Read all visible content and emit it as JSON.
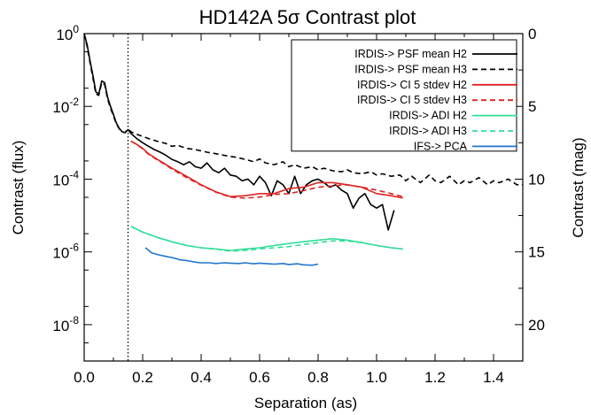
{
  "chart_data": {
    "type": "line",
    "title": "HD142A 5σ Contrast plot",
    "xlabel": "Separation (as)",
    "ylabel": "Contrast (flux)",
    "ylabel_right": "Contrast (mag)",
    "xlim": [
      0.0,
      1.5
    ],
    "ylim": [
      1e-09,
      1.0
    ],
    "yscale": "log",
    "xticks": [
      "0.0",
      "0.2",
      "0.4",
      "0.6",
      "0.8",
      "1.0",
      "1.2",
      "1.4"
    ],
    "xtick_values": [
      0.0,
      0.2,
      0.4,
      0.6,
      0.8,
      1.0,
      1.2,
      1.4
    ],
    "yticks": [
      {
        "base": "10",
        "exp": "0",
        "value": 1
      },
      {
        "base": "10",
        "exp": "-2",
        "value": 0.01
      },
      {
        "base": "10",
        "exp": "-4",
        "value": 0.0001
      },
      {
        "base": "10",
        "exp": "-6",
        "value": 1e-06
      },
      {
        "base": "10",
        "exp": "-8",
        "value": 1e-08
      }
    ],
    "right_ticks": [
      "0",
      "5",
      "10",
      "15",
      "20"
    ],
    "right_tick_values": [
      0,
      5,
      10,
      15,
      20
    ],
    "vline_x": 0.15,
    "legend_position": "top-right",
    "grid": false,
    "series": [
      {
        "name": "IRDIS-> PSF mean H2",
        "color": "#000000",
        "dash": "solid",
        "x": [
          0.0,
          0.01,
          0.02,
          0.03,
          0.04,
          0.05,
          0.06,
          0.07,
          0.08,
          0.09,
          0.1,
          0.11,
          0.12,
          0.13,
          0.14,
          0.15,
          0.16,
          0.18,
          0.2,
          0.22,
          0.24,
          0.26,
          0.28,
          0.3,
          0.32,
          0.34,
          0.36,
          0.38,
          0.4,
          0.42,
          0.44,
          0.46,
          0.48,
          0.5,
          0.52,
          0.54,
          0.56,
          0.58,
          0.6,
          0.62,
          0.64,
          0.66,
          0.68,
          0.7,
          0.72,
          0.74,
          0.76,
          0.78,
          0.8,
          0.82,
          0.84,
          0.86,
          0.88,
          0.9,
          0.92,
          0.94,
          0.96,
          0.98,
          1.0,
          1.02,
          1.04,
          1.06
        ],
        "y": [
          1.0,
          0.5,
          0.18,
          0.07,
          0.025,
          0.022,
          0.05,
          0.045,
          0.018,
          0.01,
          0.006,
          0.0035,
          0.0025,
          0.002,
          0.0019,
          0.0023,
          0.0018,
          0.0013,
          0.001,
          0.0008,
          0.00065,
          0.00055,
          0.00045,
          0.00035,
          0.0003,
          0.00025,
          0.0003,
          0.00022,
          0.0002,
          0.00028,
          0.00018,
          0.00015,
          0.0002,
          0.00013,
          0.00012,
          9e-05,
          0.0001,
          7e-05,
          0.00012,
          8e-05,
          3.5e-05,
          9e-05,
          7e-05,
          4e-05,
          0.00012,
          4e-05,
          7e-05,
          9e-05,
          0.0001,
          8e-05,
          6e-05,
          7e-05,
          5e-05,
          4e-05,
          1.6e-05,
          3e-05,
          4e-05,
          2e-05,
          1.6e-05,
          2e-05,
          4e-06,
          1.4e-05
        ]
      },
      {
        "name": "IRDIS-> PSF mean H3",
        "color": "#000000",
        "dash": "dashed",
        "x": [
          0.0,
          0.01,
          0.02,
          0.03,
          0.04,
          0.05,
          0.06,
          0.07,
          0.08,
          0.09,
          0.1,
          0.11,
          0.12,
          0.13,
          0.14,
          0.15,
          0.16,
          0.18,
          0.2,
          0.22,
          0.25,
          0.28,
          0.3,
          0.32,
          0.35,
          0.38,
          0.4,
          0.42,
          0.45,
          0.48,
          0.5,
          0.52,
          0.55,
          0.58,
          0.6,
          0.62,
          0.65,
          0.68,
          0.7,
          0.72,
          0.75,
          0.78,
          0.8,
          0.82,
          0.85,
          0.88,
          0.9,
          0.92,
          0.95,
          0.98,
          1.0,
          1.02,
          1.05,
          1.08,
          1.1,
          1.12,
          1.15,
          1.18,
          1.2,
          1.22,
          1.25,
          1.28,
          1.3,
          1.32,
          1.35,
          1.38,
          1.4,
          1.42,
          1.45,
          1.48,
          1.5
        ],
        "y": [
          1.0,
          0.45,
          0.16,
          0.06,
          0.022,
          0.02,
          0.045,
          0.04,
          0.016,
          0.009,
          0.0055,
          0.0033,
          0.0024,
          0.002,
          0.0019,
          0.0024,
          0.002,
          0.0017,
          0.0015,
          0.0013,
          0.0011,
          0.00095,
          0.0008,
          0.00085,
          0.0007,
          0.00065,
          0.0006,
          0.00055,
          0.0005,
          0.00045,
          0.00042,
          0.0004,
          0.00035,
          0.0003,
          0.00036,
          0.00028,
          0.00025,
          0.0003,
          0.00022,
          0.00025,
          0.0002,
          0.00022,
          0.00018,
          0.0002,
          0.00017,
          0.00016,
          0.00018,
          0.00015,
          0.00014,
          0.00016,
          0.00013,
          0.00014,
          0.00012,
          0.00013,
          9e-05,
          0.00012,
          8e-05,
          0.00013,
          9e-05,
          8e-05,
          0.00012,
          7e-05,
          9e-05,
          8e-05,
          0.00011,
          7e-05,
          9e-05,
          8e-05,
          0.0001,
          7e-05,
          7e-05
        ]
      },
      {
        "name": "IRDIS-> CI 5 stdev H2",
        "color": "#dd2222",
        "dash": "solid",
        "x": [
          0.16,
          0.18,
          0.2,
          0.22,
          0.25,
          0.28,
          0.3,
          0.35,
          0.4,
          0.45,
          0.5,
          0.55,
          0.6,
          0.65,
          0.7,
          0.75,
          0.8,
          0.85,
          0.9,
          0.95,
          1.0,
          1.05,
          1.09
        ],
        "y": [
          0.0011,
          0.0009,
          0.0007,
          0.0005,
          0.00035,
          0.00025,
          0.0002,
          0.00012,
          7e-05,
          4.5e-05,
          3.3e-05,
          3.5e-05,
          4e-05,
          4e-05,
          5.5e-05,
          6e-05,
          8e-05,
          8e-05,
          7e-05,
          6e-05,
          4e-05,
          3.5e-05,
          3e-05
        ]
      },
      {
        "name": "IRDIS-> CI 5 stdev H3",
        "color": "#dd2222",
        "dash": "dashed",
        "x": [
          0.16,
          0.18,
          0.2,
          0.22,
          0.25,
          0.28,
          0.3,
          0.35,
          0.4,
          0.45,
          0.5,
          0.55,
          0.6,
          0.65,
          0.7,
          0.75,
          0.8,
          0.85,
          0.9,
          0.95,
          1.0,
          1.05,
          1.09
        ],
        "y": [
          0.0011,
          0.0009,
          0.00068,
          0.00048,
          0.00034,
          0.00024,
          0.00019,
          0.00011,
          6.8e-05,
          4.4e-05,
          3.2e-05,
          3e-05,
          3.2e-05,
          3.8e-05,
          4e-05,
          4.8e-05,
          6e-05,
          6.5e-05,
          7e-05,
          6e-05,
          5e-05,
          4e-05,
          3.3e-05
        ]
      },
      {
        "name": "IRDIS-> ADI H2",
        "color": "#33dd99",
        "dash": "solid",
        "x": [
          0.16,
          0.2,
          0.25,
          0.3,
          0.35,
          0.4,
          0.45,
          0.5,
          0.55,
          0.6,
          0.65,
          0.7,
          0.75,
          0.8,
          0.85,
          0.9,
          0.95,
          1.0,
          1.05,
          1.09
        ],
        "y": [
          5e-06,
          3.5e-06,
          2.5e-06,
          1.9e-06,
          1.5e-06,
          1.3e-06,
          1.2e-06,
          1.1e-06,
          1.2e-06,
          1.3e-06,
          1.5e-06,
          1.7e-06,
          1.9e-06,
          2.1e-06,
          2.3e-06,
          2.1e-06,
          1.8e-06,
          1.5e-06,
          1.3e-06,
          1.2e-06
        ]
      },
      {
        "name": "IRDIS-> ADI H3",
        "color": "#33dd99",
        "dash": "dashed",
        "x": [
          0.16,
          0.2,
          0.25,
          0.3,
          0.35,
          0.4,
          0.45,
          0.5,
          0.55,
          0.6,
          0.65,
          0.7,
          0.75,
          0.8,
          0.85,
          0.9,
          0.95,
          1.0,
          1.05,
          1.09
        ],
        "y": [
          5e-06,
          3.5e-06,
          2.5e-06,
          1.9e-06,
          1.5e-06,
          1.3e-06,
          1.2e-06,
          1.05e-06,
          1.1e-06,
          1.2e-06,
          1.3e-06,
          1.4e-06,
          1.6e-06,
          1.8e-06,
          2e-06,
          2e-06,
          1.8e-06,
          1.5e-06,
          1.3e-06,
          1.2e-06
        ]
      },
      {
        "name": "IFS-> PCA",
        "color": "#2277cc",
        "dash": "solid",
        "x": [
          0.21,
          0.23,
          0.25,
          0.28,
          0.3,
          0.33,
          0.35,
          0.38,
          0.4,
          0.43,
          0.45,
          0.48,
          0.5,
          0.53,
          0.55,
          0.58,
          0.6,
          0.63,
          0.65,
          0.68,
          0.7,
          0.73,
          0.75,
          0.78,
          0.8
        ],
        "y": [
          1.3e-06,
          9.5e-07,
          8.5e-07,
          7.5e-07,
          7e-07,
          6e-07,
          5.8e-07,
          5.2e-07,
          5e-07,
          5e-07,
          4.8e-07,
          5e-07,
          4.9e-07,
          4.8e-07,
          5e-07,
          4.7e-07,
          4.9e-07,
          4.7e-07,
          4.6e-07,
          4.8e-07,
          4.5e-07,
          4.7e-07,
          4.4e-07,
          4.3e-07,
          4.6e-07
        ]
      }
    ]
  }
}
